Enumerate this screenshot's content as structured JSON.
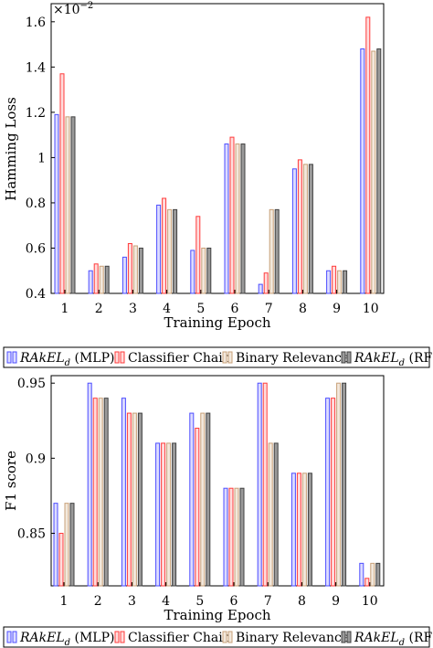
{
  "chart_data": [
    {
      "type": "bar",
      "categories": [
        "1",
        "2",
        "3",
        "4",
        "5",
        "6",
        "7",
        "8",
        "9",
        "10"
      ],
      "series": [
        {
          "name": "MLP",
          "values": [
            1.19,
            0.5,
            0.56,
            0.79,
            0.59,
            1.06,
            0.44,
            0.95,
            0.5,
            1.48
          ]
        },
        {
          "name": "Classifier Chain",
          "values": [
            1.37,
            0.53,
            0.62,
            0.82,
            0.74,
            1.09,
            0.49,
            0.99,
            0.52,
            1.62
          ]
        },
        {
          "name": "Binary Relevance",
          "values": [
            1.18,
            0.52,
            0.61,
            0.77,
            0.6,
            1.06,
            0.77,
            0.97,
            0.5,
            1.47
          ]
        },
        {
          "name": "RF",
          "values": [
            1.18,
            0.52,
            0.6,
            0.77,
            0.6,
            1.06,
            0.77,
            0.97,
            0.5,
            1.48
          ]
        }
      ],
      "xlabel": "Training Epoch",
      "ylabel": "Hamming Loss",
      "multiplier": "×10",
      "multiplier_exp": "−2",
      "ylim": [
        0.4,
        1.68
      ],
      "yticks": [
        "0.4",
        "0.6",
        "0.8",
        "1",
        "1.2",
        "1.4",
        "1.6"
      ],
      "legend_position": "bottom",
      "grid": false
    },
    {
      "type": "bar",
      "categories": [
        "1",
        "2",
        "3",
        "4",
        "5",
        "6",
        "7",
        "8",
        "9",
        "10"
      ],
      "series": [
        {
          "name": "MLP",
          "values": [
            0.87,
            0.95,
            0.94,
            0.91,
            0.93,
            0.88,
            0.95,
            0.89,
            0.94,
            0.83
          ]
        },
        {
          "name": "Classifier Chain",
          "values": [
            0.85,
            0.94,
            0.93,
            0.91,
            0.92,
            0.88,
            0.95,
            0.89,
            0.94,
            0.82
          ]
        },
        {
          "name": "Binary Relevance",
          "values": [
            0.87,
            0.94,
            0.93,
            0.91,
            0.93,
            0.88,
            0.91,
            0.89,
            0.95,
            0.83
          ]
        },
        {
          "name": "RF",
          "values": [
            0.87,
            0.94,
            0.93,
            0.91,
            0.93,
            0.88,
            0.91,
            0.89,
            0.95,
            0.83
          ]
        }
      ],
      "xlabel": "Training Epoch",
      "ylabel": "F1 score",
      "ylim": [
        0.815,
        0.955
      ],
      "yticks": [
        "0.85",
        "0.9",
        "0.95"
      ],
      "legend_position": "bottom",
      "grid": false
    }
  ],
  "legend": {
    "items": [
      {
        "main": "RAkEL",
        "sub": "d",
        "suffix": " (MLP)"
      },
      {
        "main": "Classifier Chain",
        "sub": "",
        "suffix": ""
      },
      {
        "main": "Binary Relevance",
        "sub": "",
        "suffix": ""
      },
      {
        "main": "RAkEL",
        "sub": "d",
        "suffix": " (RF)"
      }
    ]
  },
  "colors": {
    "mlp_stroke": "#4d4dff",
    "mlp_fill": "#dcdcff",
    "cc_stroke": "#ff3b3b",
    "cc_fill": "#ffdcdc",
    "br_stroke": "#c8a078",
    "br_fill": "#f2e8dc",
    "rf_stroke": "#404040",
    "rf_fill": "#9a9a9a"
  }
}
